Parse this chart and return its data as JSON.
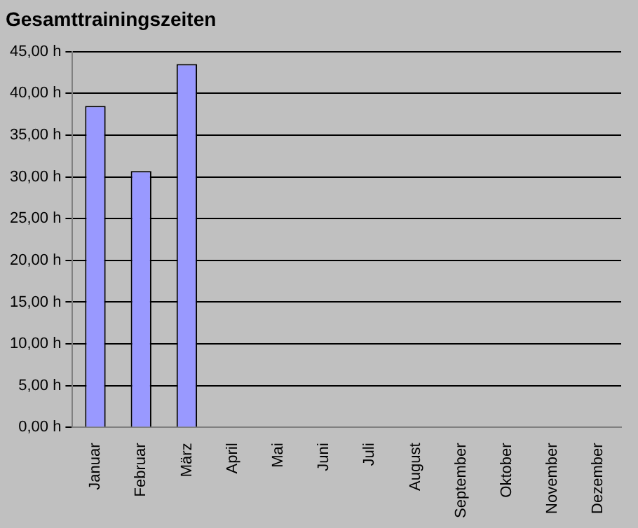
{
  "chart_data": {
    "type": "bar",
    "title": "Gesamttrainingszeiten",
    "categories": [
      "Januar",
      "Februar",
      "März",
      "April",
      "Mai",
      "Juni",
      "Juli",
      "August",
      "September",
      "Oktober",
      "November",
      "Dezember"
    ],
    "values": [
      38.5,
      30.7,
      43.5,
      0,
      0,
      0,
      0,
      0,
      0,
      0,
      0,
      0
    ],
    "color": "#9999ff",
    "ylim": [
      0,
      45
    ],
    "yticks": [
      {
        "value": 0,
        "label": "0,00 h"
      },
      {
        "value": 5,
        "label": "5,00 h"
      },
      {
        "value": 10,
        "label": "10,00 h"
      },
      {
        "value": 15,
        "label": "15,00 h"
      },
      {
        "value": 20,
        "label": "20,00 h"
      },
      {
        "value": 25,
        "label": "25,00 h"
      },
      {
        "value": 30,
        "label": "30,00 h"
      },
      {
        "value": 35,
        "label": "35,00 h"
      },
      {
        "value": 40,
        "label": "40,00 h"
      },
      {
        "value": 45,
        "label": "45,00 h"
      }
    ],
    "grid": "y",
    "legend": false
  }
}
